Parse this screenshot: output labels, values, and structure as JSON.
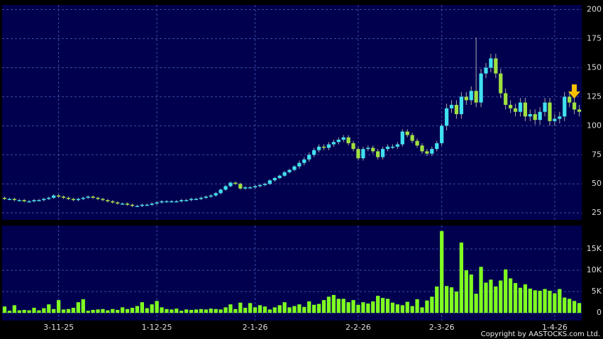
{
  "chart_data": [
    {
      "type": "candlestick",
      "categories": [
        null,
        null,
        null,
        null,
        null,
        null,
        null,
        null,
        null,
        null,
        null,
        "3-11-25",
        null,
        null,
        null,
        null,
        null,
        null,
        null,
        null,
        null,
        null,
        null,
        null,
        null,
        null,
        null,
        null,
        null,
        null,
        null,
        "1-12-25",
        null,
        null,
        null,
        null,
        null,
        null,
        null,
        null,
        null,
        null,
        null,
        null,
        null,
        null,
        null,
        null,
        null,
        null,
        null,
        "2-1-26",
        null,
        null,
        null,
        null,
        null,
        null,
        null,
        null,
        null,
        null,
        null,
        null,
        null,
        null,
        null,
        null,
        null,
        null,
        null,
        null,
        "2-2-26",
        null,
        null,
        null,
        null,
        null,
        null,
        null,
        null,
        null,
        null,
        null,
        null,
        null,
        null,
        null,
        null,
        "2-3-26",
        null,
        null,
        null,
        null,
        null,
        null,
        null,
        null,
        null,
        null,
        null,
        null,
        null,
        null,
        null,
        null,
        null,
        null,
        null,
        null,
        null,
        null,
        "1-4-26",
        null,
        null,
        null,
        null,
        null
      ],
      "open": [
        38,
        37,
        37,
        36,
        36,
        35,
        35,
        36,
        36,
        37,
        38,
        40,
        39,
        38,
        37,
        36,
        37,
        38,
        39,
        38,
        37,
        36,
        35,
        34,
        33,
        33,
        32,
        31,
        31,
        32,
        32,
        33,
        34,
        35,
        35,
        35,
        35,
        36,
        36,
        37,
        37,
        38,
        39,
        40,
        42,
        45,
        48,
        51,
        50,
        46,
        47,
        47,
        48,
        49,
        50,
        53,
        55,
        57,
        60,
        62,
        65,
        68,
        71,
        75,
        79,
        82,
        81,
        84,
        86,
        88,
        90,
        85,
        80,
        72,
        80,
        81,
        78,
        73,
        80,
        82,
        82,
        84,
        95,
        92,
        87,
        83,
        78,
        76,
        80,
        85,
        100,
        115,
        118,
        110,
        125,
        122,
        130,
        120,
        145,
        150,
        158,
        145,
        128,
        118,
        115,
        112,
        120,
        108,
        110,
        105,
        112,
        120,
        104,
        106,
        108,
        125,
        120,
        114
      ],
      "high": [
        39,
        38,
        38,
        37,
        37,
        36,
        37,
        37,
        38,
        39,
        41,
        41,
        40,
        39,
        38,
        38,
        39,
        40,
        40,
        39,
        38,
        37,
        36,
        35,
        34,
        34,
        33,
        32,
        33,
        33,
        34,
        35,
        36,
        36,
        36,
        36,
        37,
        37,
        38,
        38,
        39,
        40,
        41,
        43,
        46,
        49,
        52,
        52,
        51,
        48,
        48,
        49,
        50,
        51,
        54,
        56,
        58,
        61,
        63,
        66,
        70,
        73,
        77,
        81,
        84,
        84,
        86,
        88,
        90,
        92,
        92,
        87,
        82,
        82,
        83,
        83,
        80,
        82,
        84,
        84,
        86,
        97,
        97,
        94,
        89,
        85,
        80,
        82,
        87,
        102,
        119,
        122,
        122,
        129,
        129,
        134,
        176,
        149,
        154,
        162,
        162,
        149,
        132,
        122,
        119,
        124,
        124,
        114,
        114,
        116,
        124,
        124,
        110,
        112,
        129,
        129,
        124,
        118
      ],
      "low": [
        36,
        36,
        35,
        35,
        34,
        34,
        34,
        35,
        35,
        36,
        37,
        38,
        37,
        36,
        35,
        35,
        36,
        37,
        37,
        36,
        35,
        34,
        33,
        32,
        32,
        31,
        30,
        30,
        30,
        31,
        31,
        32,
        33,
        34,
        34,
        34,
        34,
        35,
        35,
        36,
        36,
        37,
        38,
        39,
        41,
        44,
        47,
        49,
        45,
        45,
        46,
        46,
        47,
        48,
        49,
        52,
        54,
        56,
        59,
        61,
        63,
        66,
        69,
        73,
        77,
        79,
        79,
        82,
        84,
        86,
        83,
        78,
        70,
        70,
        78,
        76,
        71,
        71,
        78,
        80,
        80,
        82,
        90,
        85,
        81,
        76,
        74,
        74,
        78,
        83,
        96,
        111,
        106,
        106,
        118,
        118,
        116,
        116,
        141,
        146,
        141,
        124,
        114,
        111,
        108,
        108,
        104,
        104,
        101,
        101,
        108,
        100,
        100,
        102,
        104,
        116,
        110,
        108
      ],
      "close": [
        37,
        37,
        36,
        36,
        35,
        35,
        36,
        36,
        37,
        38,
        40,
        39,
        38,
        37,
        36,
        37,
        38,
        39,
        38,
        37,
        36,
        35,
        34,
        33,
        33,
        32,
        31,
        31,
        32,
        32,
        33,
        34,
        35,
        35,
        35,
        35,
        36,
        36,
        37,
        37,
        38,
        39,
        40,
        42,
        45,
        48,
        51,
        50,
        46,
        47,
        47,
        48,
        49,
        50,
        53,
        55,
        57,
        60,
        62,
        65,
        68,
        71,
        75,
        79,
        82,
        81,
        84,
        86,
        88,
        90,
        85,
        80,
        72,
        80,
        81,
        78,
        73,
        80,
        82,
        82,
        84,
        95,
        92,
        87,
        83,
        78,
        76,
        80,
        85,
        100,
        115,
        118,
        110,
        125,
        122,
        130,
        120,
        145,
        150,
        158,
        145,
        128,
        118,
        115,
        112,
        120,
        108,
        110,
        105,
        112,
        120,
        104,
        106,
        108,
        125,
        120,
        114,
        112
      ],
      "up_color": "#40e0f0",
      "down_color": "#a0e040",
      "ylim": [
        19,
        204
      ],
      "yticks": [
        25,
        50,
        75,
        100,
        125,
        150,
        175,
        200
      ],
      "grid": true
    },
    {
      "type": "bar",
      "values": [
        1500,
        500,
        1800,
        600,
        700,
        600,
        1200,
        600,
        1100,
        2000,
        900,
        3000,
        800,
        900,
        1200,
        2500,
        3200,
        500,
        700,
        800,
        900,
        600,
        900,
        700,
        1300,
        900,
        1200,
        1600,
        2500,
        1100,
        2000,
        2800,
        1300,
        900,
        800,
        1000,
        500,
        800,
        700,
        800,
        900,
        800,
        1000,
        900,
        800,
        1300,
        2000,
        900,
        2400,
        1200,
        2300,
        1300,
        1800,
        1500,
        800,
        1300,
        1800,
        2500,
        1300,
        1600,
        2000,
        1400,
        2700,
        1900,
        2100,
        3000,
        3800,
        4200,
        3300,
        3300,
        2500,
        3000,
        1900,
        2500,
        2200,
        2700,
        4000,
        3500,
        3300,
        2400,
        2000,
        1800,
        2600,
        1600,
        3200,
        1300,
        2900,
        3800,
        6200,
        19200,
        6300,
        6000,
        5000,
        16500,
        10000,
        9000,
        4500,
        10800,
        7100,
        7800,
        6200,
        7600,
        10200,
        8100,
        7000,
        5900,
        6700,
        5700,
        5300,
        5200,
        5600,
        5200,
        4600,
        5600,
        3600,
        3300,
        2800,
        2300
      ],
      "color": "#80ff20",
      "ylim": [
        -1800,
        20500
      ],
      "yticks": [
        0,
        {
          "value": 5000,
          "label": "5K"
        },
        {
          "value": 10000,
          "label": "10K"
        },
        {
          "value": 15000,
          "label": "15K"
        }
      ],
      "grid": true
    }
  ],
  "footer": "Copyright by AASTOCKS.com Ltd."
}
